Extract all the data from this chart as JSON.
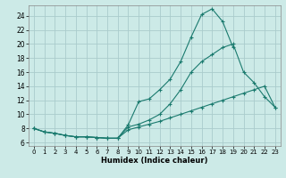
{
  "title": "",
  "xlabel": "Humidex (Indice chaleur)",
  "bg_color": "#cceae7",
  "grid_color": "#aacccc",
  "line_color": "#1a7a6e",
  "xlim": [
    -0.5,
    23.5
  ],
  "ylim": [
    5.5,
    25.5
  ],
  "xticks": [
    0,
    1,
    2,
    3,
    4,
    5,
    6,
    7,
    8,
    9,
    10,
    11,
    12,
    13,
    14,
    15,
    16,
    17,
    18,
    19,
    20,
    21,
    22,
    23
  ],
  "yticks": [
    6,
    8,
    10,
    12,
    14,
    16,
    18,
    20,
    22,
    24
  ],
  "series1_x": [
    0,
    1,
    2,
    3,
    4,
    5,
    6,
    7,
    8,
    9,
    10,
    11,
    12,
    13,
    14,
    15,
    16,
    17,
    18,
    19
  ],
  "series1_y": [
    8.0,
    7.5,
    7.3,
    7.0,
    6.8,
    6.8,
    6.7,
    6.6,
    6.6,
    8.5,
    11.8,
    12.2,
    13.5,
    15.0,
    17.5,
    21.0,
    24.2,
    25.0,
    23.2,
    19.5
  ],
  "series2_x": [
    0,
    1,
    2,
    3,
    4,
    5,
    6,
    7,
    8,
    9,
    10,
    11,
    12,
    13,
    14,
    15,
    16,
    17,
    18,
    19,
    20,
    21,
    22,
    23
  ],
  "series2_y": [
    8.0,
    7.5,
    7.3,
    7.0,
    6.8,
    6.8,
    6.7,
    6.6,
    6.6,
    8.2,
    8.6,
    9.2,
    10.0,
    11.5,
    13.5,
    16.0,
    17.5,
    18.5,
    19.5,
    20.0,
    16.0,
    14.5,
    12.5,
    11.0
  ],
  "series3_x": [
    0,
    1,
    2,
    3,
    4,
    5,
    6,
    7,
    8,
    9,
    10,
    11,
    12,
    13,
    14,
    15,
    16,
    17,
    18,
    19,
    20,
    21,
    22,
    23
  ],
  "series3_y": [
    8.0,
    7.5,
    7.3,
    7.0,
    6.8,
    6.8,
    6.7,
    6.6,
    6.6,
    7.8,
    8.2,
    8.6,
    9.0,
    9.5,
    10.0,
    10.5,
    11.0,
    11.5,
    12.0,
    12.5,
    13.0,
    13.5,
    14.0,
    11.0
  ]
}
